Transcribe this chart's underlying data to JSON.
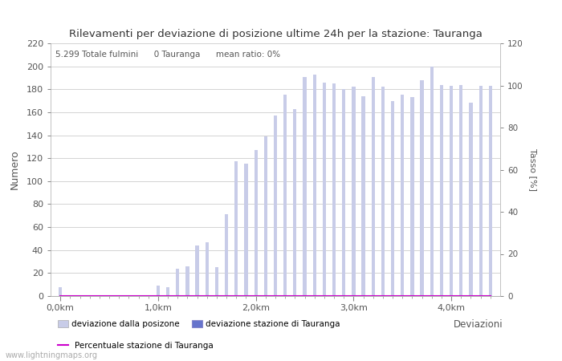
{
  "title": "Rilevamenti per deviazione di posizione ultime 24h per la stazione: Tauranga",
  "subtitle": "5.299 Totale fulmini      0 Tauranga      mean ratio: 0%",
  "xlabel": "Deviazioni",
  "ylabel_left": "Numero",
  "ylabel_right": "Tasso [%]",
  "watermark": "www.lightningmaps.org",
  "ylim_left": [
    0,
    220
  ],
  "ylim_right": [
    0,
    120
  ],
  "yticks_left": [
    0,
    20,
    40,
    60,
    80,
    100,
    120,
    140,
    160,
    180,
    200,
    220
  ],
  "yticks_right": [
    0,
    20,
    40,
    60,
    80,
    100,
    120
  ],
  "xtick_labels": [
    "0,0km",
    "1,0km",
    "2,0km",
    "3,0km",
    "4,0km"
  ],
  "xtick_positions": [
    0,
    10,
    20,
    30,
    40
  ],
  "bar_color_light": "#c8cce8",
  "bar_color_dark": "#6674cc",
  "line_color": "#cc00cc",
  "bg_color": "#ffffff",
  "bar_width": 0.35,
  "bars_total": [
    8,
    1,
    1,
    1,
    1,
    1,
    1,
    1,
    1,
    1,
    9,
    8,
    24,
    26,
    44,
    47,
    25,
    71,
    117,
    115,
    127,
    139,
    157,
    175,
    163,
    191,
    193,
    186,
    185,
    180,
    182,
    174,
    191,
    182,
    170,
    175,
    173,
    188,
    200,
    184,
    183,
    184,
    168,
    183,
    183
  ],
  "bars_station": [
    0,
    0,
    0,
    0,
    0,
    0,
    0,
    0,
    0,
    0,
    0,
    0,
    0,
    0,
    0,
    0,
    0,
    0,
    0,
    0,
    0,
    0,
    0,
    0,
    0,
    0,
    0,
    0,
    0,
    0,
    0,
    0,
    0,
    0,
    0,
    0,
    0,
    0,
    0,
    0,
    0,
    0,
    0,
    0,
    0
  ],
  "ratio_line": [
    0,
    0,
    0,
    0,
    0,
    0,
    0,
    0,
    0,
    0,
    0,
    0,
    0,
    0,
    0,
    0,
    0,
    0,
    0,
    0,
    0,
    0,
    0,
    0,
    0,
    0,
    0,
    0,
    0,
    0,
    0,
    0,
    0,
    0,
    0,
    0,
    0,
    0,
    0,
    0,
    0,
    0,
    0,
    0,
    0
  ],
  "n_bars": 45,
  "legend_label_light": "deviazione dalla posizone",
  "legend_label_dark": "deviazione stazione di Tauranga",
  "legend_label_line": "Percentuale stazione di Tauranga"
}
